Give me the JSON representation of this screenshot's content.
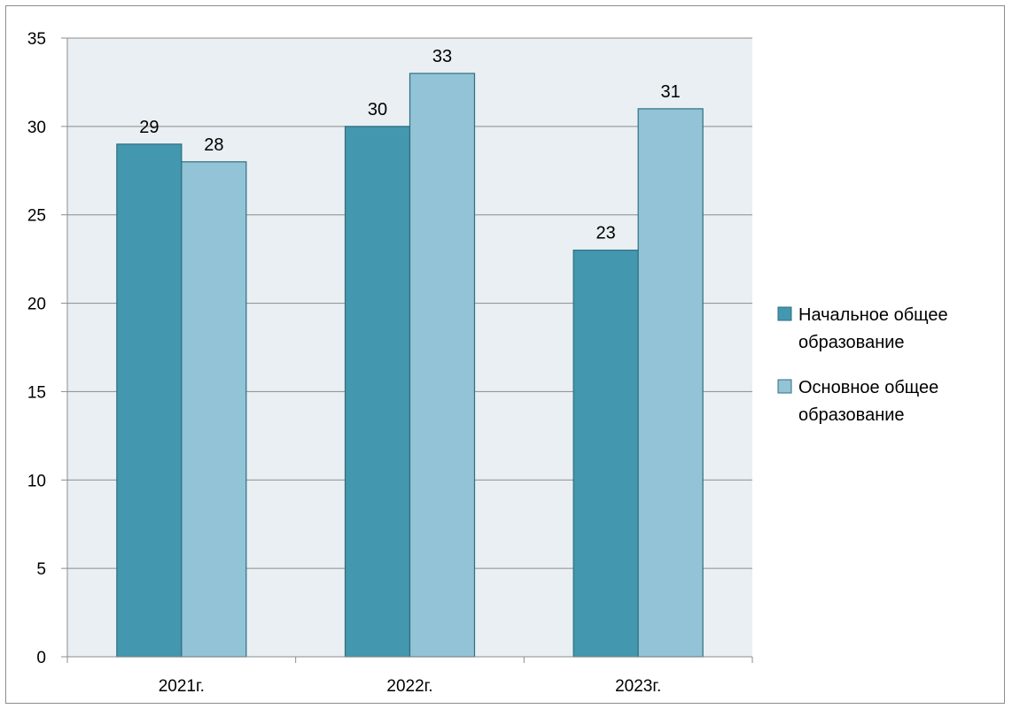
{
  "chart_data": {
    "type": "bar",
    "title": "",
    "xlabel": "",
    "ylabel": "",
    "categories": [
      "2021г.",
      "2022г.",
      "2023г."
    ],
    "series": [
      {
        "name": "Начальное общее образование",
        "values": [
          29,
          30,
          23
        ],
        "color": "#4397ae"
      },
      {
        "name": "Основное общее образование",
        "values": [
          28,
          33,
          31
        ],
        "color": "#93c3d6"
      }
    ],
    "ylim": [
      0,
      35
    ],
    "yticks": [
      0,
      5,
      10,
      15,
      20,
      25,
      30,
      35
    ],
    "grid": true,
    "legend_position": "right",
    "plot_background": "#e9eff3",
    "data_labels": true
  }
}
